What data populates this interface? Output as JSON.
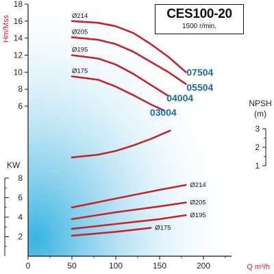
{
  "chart_data": {
    "type": "line",
    "title": "CES100-20",
    "subtitle": "1500 r/min.",
    "xlabel": "Q m³/h",
    "x_ticks": [
      "0",
      "50",
      "100",
      "150",
      "200"
    ],
    "xlim": [
      0,
      250
    ],
    "head": {
      "ylabel": "Hm/Mss",
      "ylim": [
        0,
        18
      ],
      "y_ticks": [
        "6",
        "8",
        "10",
        "12",
        "14",
        "16",
        "18"
      ],
      "series": [
        {
          "name": "Ø214",
          "x": [
            50,
            80,
            100,
            120,
            140,
            160,
            180
          ],
          "y": [
            16.0,
            15.8,
            15.4,
            14.6,
            13.3,
            11.8,
            10.0
          ]
        },
        {
          "name": "Ø205",
          "x": [
            50,
            80,
            100,
            120,
            140,
            160,
            180
          ],
          "y": [
            14.1,
            13.8,
            13.3,
            12.4,
            11.2,
            10.0,
            8.6
          ]
        },
        {
          "name": "Ø195",
          "x": [
            50,
            80,
            100,
            120,
            140,
            160
          ],
          "y": [
            12.0,
            11.6,
            10.9,
            9.8,
            8.5,
            7.2
          ]
        },
        {
          "name": "Ø175",
          "x": [
            50,
            80,
            100,
            120,
            140,
            155
          ],
          "y": [
            9.5,
            9.1,
            8.3,
            7.3,
            6.2,
            5.5
          ]
        }
      ],
      "model_labels": [
        "07504",
        "05504",
        "04004",
        "03004"
      ]
    },
    "npsh": {
      "ylabel": "NPSH",
      "unit": "(m)",
      "ylim": [
        1,
        3
      ],
      "y_ticks": [
        "1",
        "2",
        "3"
      ],
      "series": [
        {
          "name": "NPSH",
          "x": [
            50,
            80,
            100,
            120,
            140,
            162
          ],
          "y": [
            1.45,
            1.6,
            1.8,
            2.1,
            2.45,
            2.9
          ]
        }
      ]
    },
    "power": {
      "ylabel": "KW",
      "ylim": [
        0,
        8
      ],
      "y_ticks": [
        "2",
        "4",
        "6",
        "8"
      ],
      "series": [
        {
          "name": "Ø214",
          "x": [
            50,
            100,
            150,
            180
          ],
          "y": [
            5.0,
            5.9,
            6.8,
            7.3
          ]
        },
        {
          "name": "Ø205",
          "x": [
            50,
            100,
            150,
            180
          ],
          "y": [
            3.8,
            4.5,
            5.1,
            5.5
          ]
        },
        {
          "name": "Ø195",
          "x": [
            50,
            100,
            150,
            180
          ],
          "y": [
            2.8,
            3.3,
            3.8,
            4.2
          ]
        },
        {
          "name": "Ø175",
          "x": [
            50,
            100,
            140
          ],
          "y": [
            2.1,
            2.5,
            2.9
          ]
        }
      ]
    }
  },
  "colors": {
    "curve": "#c4242b",
    "axis_label": "#d01f26",
    "model_label": "#1f6aa8",
    "glow": "#5fc0e6"
  }
}
